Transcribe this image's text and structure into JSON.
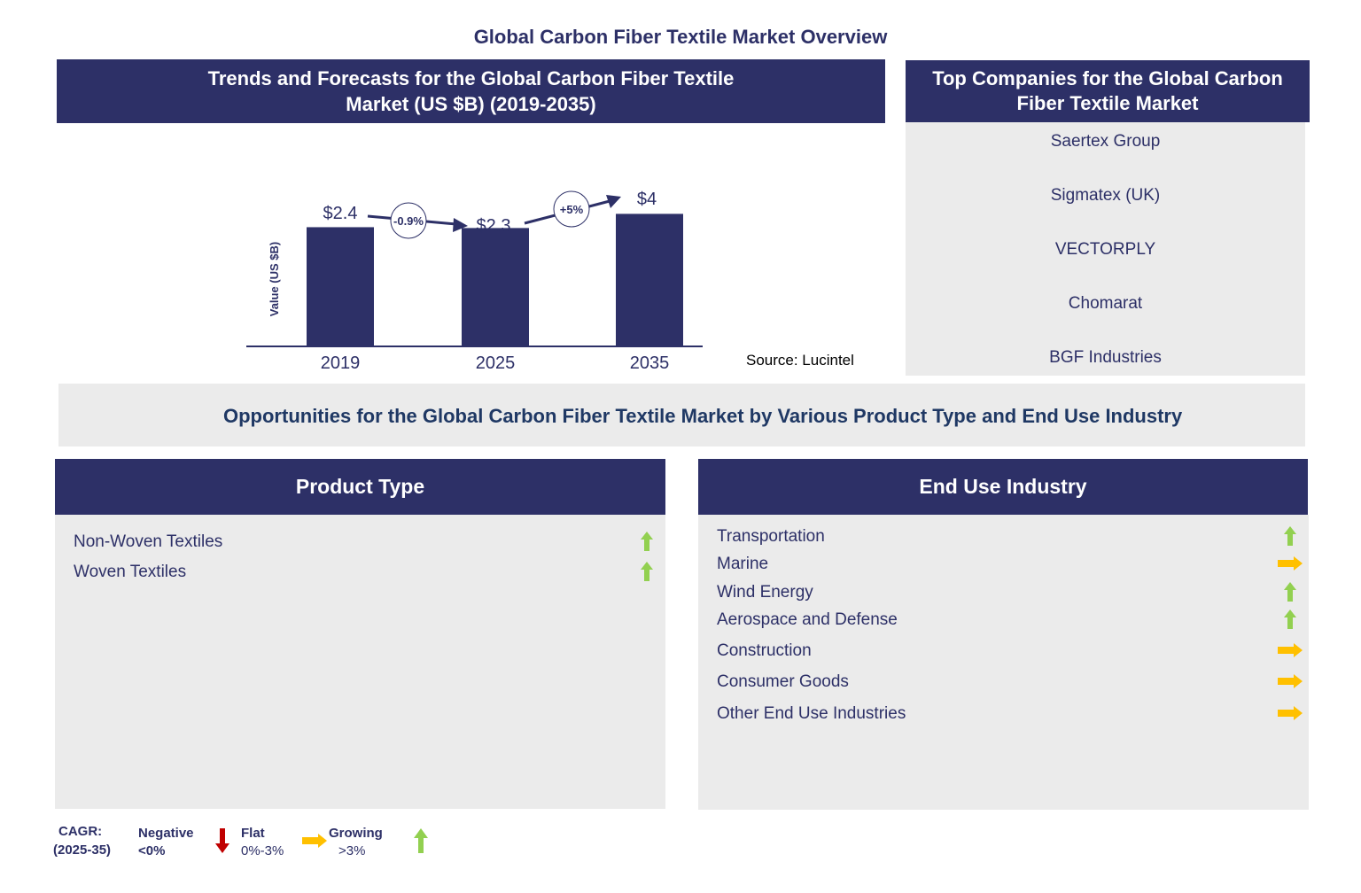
{
  "title": "Global Carbon Fiber Textile Market Overview",
  "trends_header": "Trends and Forecasts for the Global Carbon Fiber Textile Market (US $B) (2019-2035)",
  "companies_header": "Top Companies for the Global Carbon Fiber Textile Market",
  "companies": [
    "Saertex Group",
    "Sigmatex (UK)",
    "VECTORPLY",
    "Chomarat",
    "BGF Industries"
  ],
  "source": "Source: Lucintel",
  "opportunities_header": "Opportunities for the Global Carbon Fiber Textile Market by Various Product Type and End Use Industry",
  "product_type": {
    "header": "Product Type",
    "items": [
      {
        "label": "Non-Woven Textiles",
        "trend": "growing"
      },
      {
        "label": "Woven Textiles",
        "trend": "growing"
      }
    ]
  },
  "end_use": {
    "header": "End Use Industry",
    "items": [
      {
        "label": "Transportation",
        "trend": "growing"
      },
      {
        "label": "Marine",
        "trend": "flat"
      },
      {
        "label": "Wind Energy",
        "trend": "growing"
      },
      {
        "label": "Aerospace and Defense",
        "trend": "growing"
      },
      {
        "label": "Construction",
        "trend": "flat"
      },
      {
        "label": "Consumer  Goods",
        "trend": "flat"
      },
      {
        "label": "Other End Use Industries",
        "trend": "flat"
      }
    ]
  },
  "legend": {
    "cagr": "CAGR:",
    "period": "(2025-35)",
    "negative": "Negative",
    "negative_range": "<0%",
    "flat": "Flat",
    "flat_range": "0%-3%",
    "growing": "Growing",
    "growing_range": ">3%"
  },
  "colors": {
    "navy": "#2d3067",
    "gray": "#ebebeb",
    "growing": "#92d050",
    "flat": "#ffc000",
    "negative": "#c00000"
  },
  "chart_data": {
    "type": "bar",
    "ylabel": "Value (US $B)",
    "categories": [
      "2019",
      "2025",
      "2035"
    ],
    "values": [
      2.4,
      2.3,
      4
    ],
    "data_labels": [
      "$2.4",
      "$2.3",
      "$4"
    ],
    "cagr_annotations": [
      "-0.9%",
      "+5%"
    ]
  }
}
